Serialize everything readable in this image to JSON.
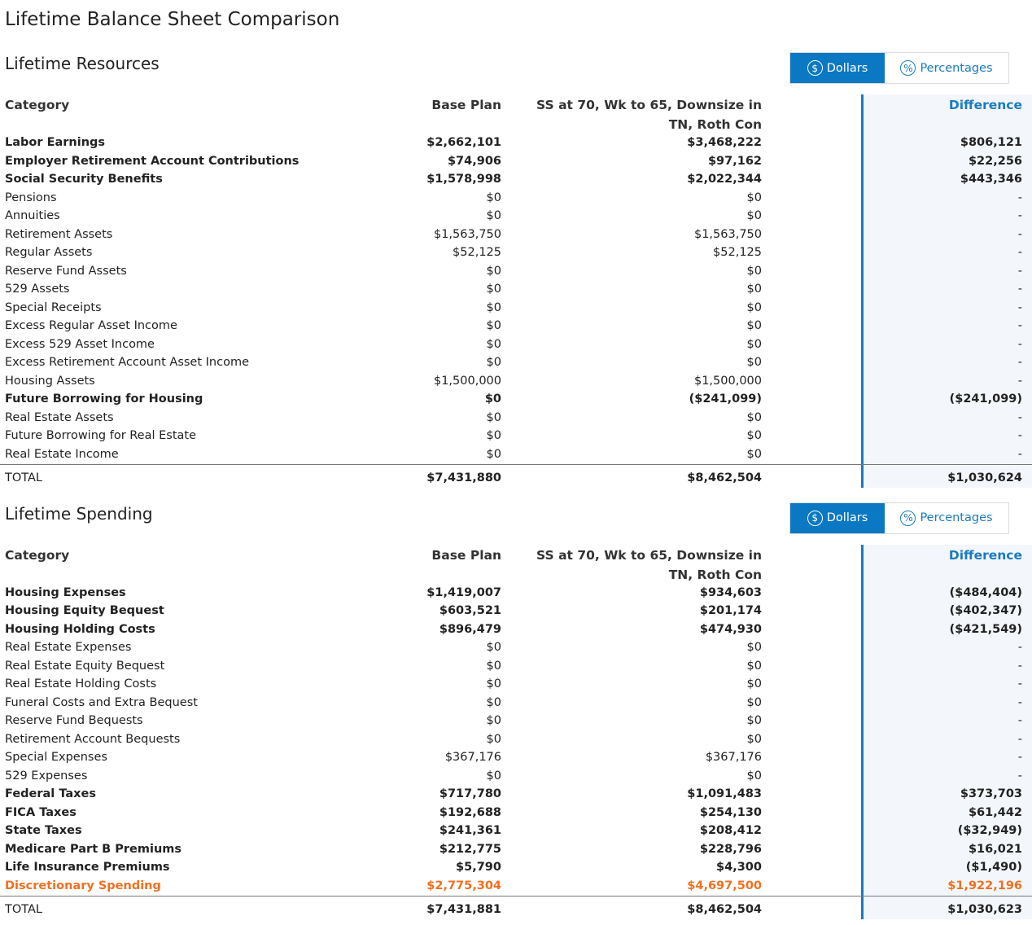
{
  "title": "Lifetime Balance Sheet Comparison",
  "sections": [
    {
      "title": "Lifetime Resources",
      "toggle": [
        {
          "icon": "$",
          "label": "Dollars"
        },
        {
          "icon": "%",
          "label": "Percentages"
        }
      ],
      "columns": [
        "Category",
        "Base Plan",
        "SS at 70, Wk to 65, Downsize in TN, Roth Con",
        "Difference"
      ],
      "rows": [
        [
          "Labor Earnings",
          "$2,662,101",
          "$3,468,222",
          "$806,121"
        ],
        [
          "Employer Retirement Account Contributions",
          "$74,906",
          "$97,162",
          "$22,256"
        ],
        [
          "Social Security Benefits",
          "$1,578,998",
          "$2,022,344",
          "$443,346"
        ],
        [
          "Pensions",
          "$0",
          "$0",
          "-"
        ],
        [
          "Annuities",
          "$0",
          "$0",
          "-"
        ],
        [
          "Retirement Assets",
          "$1,563,750",
          "$1,563,750",
          "-"
        ],
        [
          "Regular Assets",
          "$52,125",
          "$52,125",
          "-"
        ],
        [
          "Reserve Fund Assets",
          "$0",
          "$0",
          "-"
        ],
        [
          "529 Assets",
          "$0",
          "$0",
          "-"
        ],
        [
          "Special Receipts",
          "$0",
          "$0",
          "-"
        ],
        [
          "Excess Regular Asset Income",
          "$0",
          "$0",
          "-"
        ],
        [
          "Excess 529 Asset Income",
          "$0",
          "$0",
          "-"
        ],
        [
          "Excess Retirement Account Asset Income",
          "$0",
          "$0",
          "-"
        ],
        [
          "Housing Assets",
          "$1,500,000",
          "$1,500,000",
          "-"
        ],
        [
          "Future Borrowing for Housing",
          "$0",
          "($241,099)",
          "($241,099)"
        ],
        [
          "Real Estate Assets",
          "$0",
          "$0",
          "-"
        ],
        [
          "Future Borrowing for Real Estate",
          "$0",
          "$0",
          "-"
        ],
        [
          "Real Estate Income",
          "$0",
          "$0",
          "-"
        ]
      ],
      "total": [
        "TOTAL",
        "$7,431,880",
        "$8,462,504",
        "$1,030,624"
      ]
    },
    {
      "title": "Lifetime Spending",
      "toggle": [
        {
          "icon": "$",
          "label": "Dollars"
        },
        {
          "icon": "%",
          "label": "Percentages"
        }
      ],
      "columns": [
        "Category",
        "Base Plan",
        "SS at 70, Wk to 65, Downsize in TN, Roth Con",
        "Difference"
      ],
      "rows": [
        [
          "Housing Expenses",
          "$1,419,007",
          "$934,603",
          "($484,404)"
        ],
        [
          "Housing Equity Bequest",
          "$603,521",
          "$201,174",
          "($402,347)"
        ],
        [
          "Housing Holding Costs",
          "$896,479",
          "$474,930",
          "($421,549)"
        ],
        [
          "Real Estate Expenses",
          "$0",
          "$0",
          "-"
        ],
        [
          "Real Estate Equity Bequest",
          "$0",
          "$0",
          "-"
        ],
        [
          "Real Estate Holding Costs",
          "$0",
          "$0",
          "-"
        ],
        [
          "Funeral Costs and Extra Bequest",
          "$0",
          "$0",
          "-"
        ],
        [
          "Reserve Fund Bequests",
          "$0",
          "$0",
          "-"
        ],
        [
          "Retirement Account Bequests",
          "$0",
          "$0",
          "-"
        ],
        [
          "Special Expenses",
          "$367,176",
          "$367,176",
          "-"
        ],
        [
          "529 Expenses",
          "$0",
          "$0",
          "-"
        ],
        [
          "Federal Taxes",
          "$717,780",
          "$1,091,483",
          "$373,703"
        ],
        [
          "FICA Taxes",
          "$192,688",
          "$254,130",
          "$61,442"
        ],
        [
          "State Taxes",
          "$241,361",
          "$208,412",
          "($32,949)"
        ],
        [
          "Medicare Part B Premiums",
          "$212,775",
          "$228,796",
          "$16,021"
        ],
        [
          "Life Insurance Premiums",
          "$5,790",
          "$4,300",
          "($1,490)"
        ],
        [
          "Discretionary Spending",
          "$2,775,304",
          "$4,697,500",
          "$1,922,196"
        ]
      ],
      "total": [
        "TOTAL",
        "$7,431,881",
        "$8,462,504",
        "$1,030,623"
      ]
    }
  ]
}
